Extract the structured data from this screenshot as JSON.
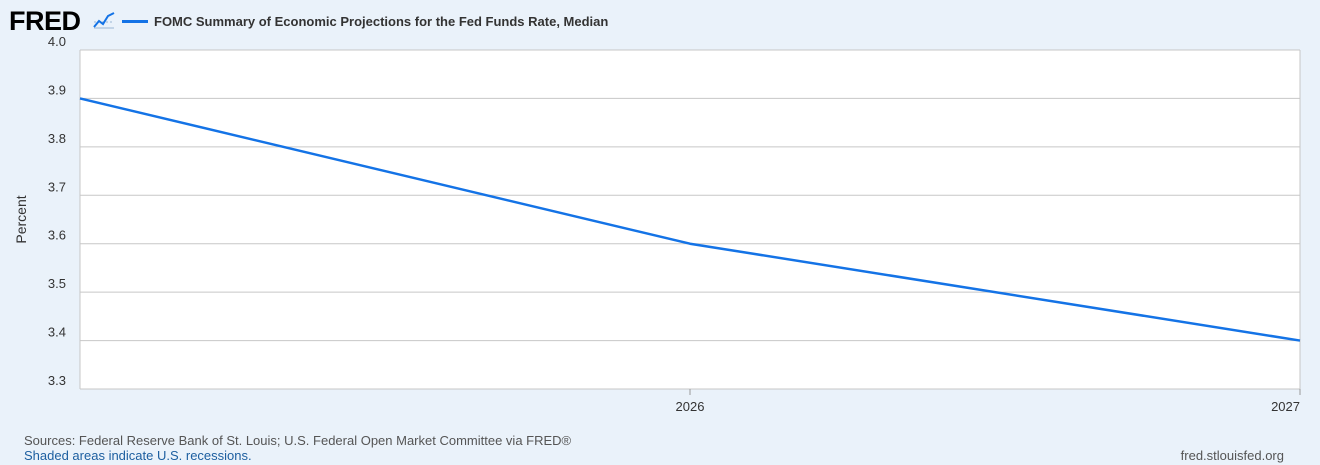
{
  "header": {
    "logo_text": "FRED",
    "logo_icon": "trend-line-icon"
  },
  "footer": {
    "source": "Sources: Federal Reserve Bank of St. Louis; U.S. Federal Open Market Committee via FRED®",
    "recession_note": "Shaded areas indicate U.S. recessions.",
    "url": "fred.stlouisfed.org"
  },
  "colors": {
    "background": "#eaf2fa",
    "plot_background": "#ffffff",
    "series": "#1473e6",
    "grid": "#c7c7c7",
    "link": "#1d5fa0"
  },
  "chart_data": {
    "type": "line",
    "title": "",
    "xlabel": "",
    "ylabel": "Percent",
    "ylim": [
      3.3,
      4.0
    ],
    "xlim": [
      "2025",
      "2027"
    ],
    "y_ticks": [
      "3.3",
      "3.4",
      "3.5",
      "3.6",
      "3.7",
      "3.8",
      "3.9",
      "4.0"
    ],
    "x_ticks": [
      "2026",
      "2027"
    ],
    "grid": "horizontal",
    "legend": "top-left",
    "series": [
      {
        "name": "FOMC Summary of Economic Projections for the Fed Funds Rate, Median",
        "x": [
          "2025",
          "2026",
          "2027"
        ],
        "values": [
          3.9,
          3.6,
          3.4
        ]
      }
    ]
  }
}
